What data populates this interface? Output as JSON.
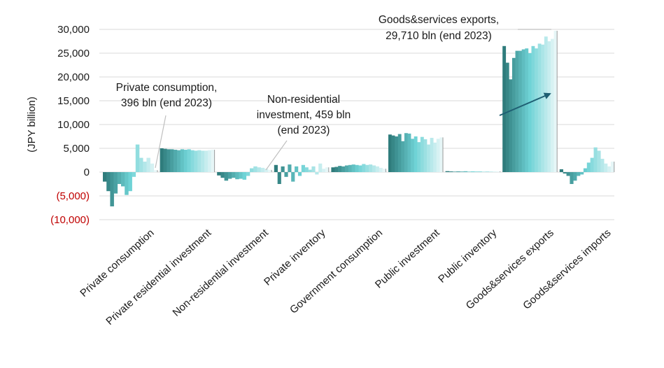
{
  "chart_data": {
    "type": "bar",
    "ylabel": "(JPY billion)",
    "ylim": [
      -10000,
      30000
    ],
    "yticks": [
      {
        "value": 30000,
        "label": "30,000"
      },
      {
        "value": 25000,
        "label": "25,000"
      },
      {
        "value": 20000,
        "label": "20,000"
      },
      {
        "value": 15000,
        "label": "15,000"
      },
      {
        "value": 10000,
        "label": "10,000"
      },
      {
        "value": 5000,
        "label": "5,000"
      },
      {
        "value": 0,
        "label": "0"
      },
      {
        "value": -5000,
        "label": "(5,000)"
      },
      {
        "value": -10000,
        "label": "(10,000)"
      }
    ],
    "negative_tick_color": "#c00000",
    "grid": true,
    "categories": [
      {
        "name": "Private consumption",
        "values": [
          -2000,
          -4000,
          -7200,
          -4500,
          -2500,
          -3000,
          -4800,
          -4000,
          -1000,
          5800,
          3000,
          2200,
          3000,
          1800,
          396
        ]
      },
      {
        "name": "Private residential investment",
        "values": [
          5000,
          4900,
          4800,
          4800,
          4700,
          4600,
          4800,
          4700,
          4800,
          4600,
          4500,
          4600,
          4500,
          4500,
          4600,
          4700
        ]
      },
      {
        "name": "Non-residential investment",
        "values": [
          -700,
          -1200,
          -1800,
          -1400,
          -1200,
          -1500,
          -1400,
          -1600,
          -800,
          800,
          1200,
          1000,
          900,
          700,
          459
        ]
      },
      {
        "name": "Private inventory",
        "values": [
          1500,
          -2500,
          1200,
          -1000,
          1600,
          -2000,
          1200,
          -800,
          1500,
          1000,
          500,
          1200,
          -500,
          1800,
          700,
          1000
        ]
      },
      {
        "name": "Government consumption",
        "values": [
          1000,
          1100,
          1300,
          1200,
          1400,
          1500,
          1600,
          1500,
          1400,
          1700,
          1500,
          1600,
          1400,
          1200,
          900,
          700
        ]
      },
      {
        "name": "Public investment",
        "values": [
          7900,
          7700,
          7500,
          8000,
          6500,
          8200,
          8100,
          7000,
          7500,
          6300,
          7400,
          6900,
          5800,
          7200,
          6200,
          7000,
          7300
        ]
      },
      {
        "name": "Public inventory",
        "values": [
          200,
          150,
          100,
          150,
          120,
          180,
          100,
          150,
          130,
          160,
          100,
          170,
          140,
          120,
          150
        ]
      },
      {
        "name": "Goods&services exports",
        "values": [
          26500,
          23000,
          19500,
          24000,
          25500,
          25500,
          25800,
          26000,
          25000,
          26500,
          26000,
          27000,
          26800,
          28500,
          27500,
          28000,
          29710
        ]
      },
      {
        "name": "Goods&services imports",
        "values": [
          600,
          -300,
          -800,
          -2500,
          -1800,
          -800,
          -500,
          800,
          2000,
          3000,
          5200,
          4500,
          2800,
          1800,
          1200,
          2200
        ]
      }
    ],
    "bar_color_start": "#2f7c7c",
    "bar_color_mid": "#6fd3d6",
    "bar_color_end": "#e6f6f7",
    "bar_outline": "#9a9a9a",
    "annotations": [
      {
        "lines": [
          "Private consumption,",
          "396  bln (end 2023)"
        ]
      },
      {
        "lines": [
          "Non-residential",
          "investment, 459  bln",
          "(end 2023)"
        ]
      },
      {
        "lines": [
          "Goods&services exports,",
          "29,710  bln (end 2023)"
        ]
      }
    ],
    "arrow_color": "#1f5f73"
  }
}
